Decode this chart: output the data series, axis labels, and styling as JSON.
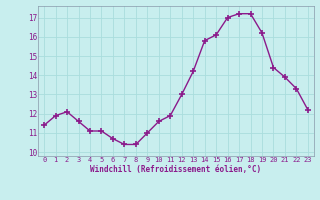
{
  "x": [
    0,
    1,
    2,
    3,
    4,
    5,
    6,
    7,
    8,
    9,
    10,
    11,
    12,
    13,
    14,
    15,
    16,
    17,
    18,
    19,
    20,
    21,
    22,
    23
  ],
  "y": [
    11.4,
    11.9,
    12.1,
    11.6,
    11.1,
    11.1,
    10.7,
    10.4,
    10.4,
    11.0,
    11.6,
    11.9,
    13.0,
    14.2,
    15.8,
    16.1,
    17.0,
    17.2,
    17.2,
    16.2,
    14.4,
    13.9,
    13.3,
    12.2
  ],
  "line_color": "#8b1a8b",
  "marker": "+",
  "marker_size": 4,
  "bg_color": "#c8eeee",
  "grid_color": "#aadddd",
  "xlabel": "Windchill (Refroidissement éolien,°C)",
  "xlabel_color": "#8b1a8b",
  "tick_color": "#8b1a8b",
  "ylim": [
    9.8,
    17.6
  ],
  "yticks": [
    10,
    11,
    12,
    13,
    14,
    15,
    16,
    17
  ],
  "xlim": [
    -0.5,
    23.5
  ],
  "xticks": [
    0,
    1,
    2,
    3,
    4,
    5,
    6,
    7,
    8,
    9,
    10,
    11,
    12,
    13,
    14,
    15,
    16,
    17,
    18,
    19,
    20,
    21,
    22,
    23
  ],
  "xtick_labels": [
    "0",
    "1",
    "2",
    "3",
    "4",
    "5",
    "6",
    "7",
    "8",
    "9",
    "10",
    "11",
    "12",
    "13",
    "14",
    "15",
    "16",
    "17",
    "18",
    "19",
    "20",
    "21",
    "22",
    "23"
  ]
}
